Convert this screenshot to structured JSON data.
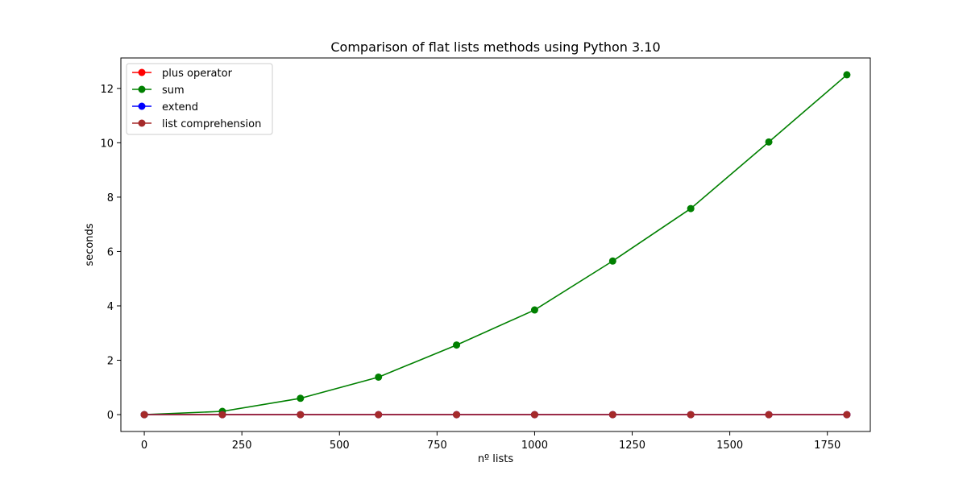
{
  "chart_data": {
    "type": "line",
    "title": "Comparison of flat lists methods using Python 3.10",
    "xlabel": "nº lists",
    "ylabel": "seconds",
    "xlim": [
      -60,
      1860
    ],
    "ylim": [
      -0.62,
      13.12
    ],
    "x_ticks": [
      0,
      250,
      500,
      750,
      1000,
      1250,
      1500,
      1750
    ],
    "y_ticks": [
      0,
      2,
      4,
      6,
      8,
      10,
      12
    ],
    "x": [
      0,
      200,
      400,
      600,
      800,
      1000,
      1200,
      1400,
      1600,
      1800
    ],
    "series": [
      {
        "name": "plus operator",
        "color": "#ff0000",
        "values": [
          0.0,
          0.0,
          0.0,
          0.0,
          0.0,
          0.0,
          0.0,
          0.0,
          0.0,
          0.0
        ]
      },
      {
        "name": "sum",
        "color": "#008000",
        "values": [
          0.0,
          0.12,
          0.6,
          1.38,
          2.56,
          3.85,
          5.65,
          7.58,
          10.03,
          12.5
        ]
      },
      {
        "name": "extend",
        "color": "#0000ff",
        "values": [
          0.0,
          0.0,
          0.0,
          0.0,
          0.0,
          0.0,
          0.0,
          0.0,
          0.0,
          0.0
        ]
      },
      {
        "name": "list comprehension",
        "color": "#a52a2a",
        "values": [
          0.0,
          0.0,
          0.0,
          0.0,
          0.0,
          0.0,
          0.0,
          0.0,
          0.0,
          0.0
        ]
      }
    ],
    "grid": false,
    "legend_position": "upper left"
  }
}
